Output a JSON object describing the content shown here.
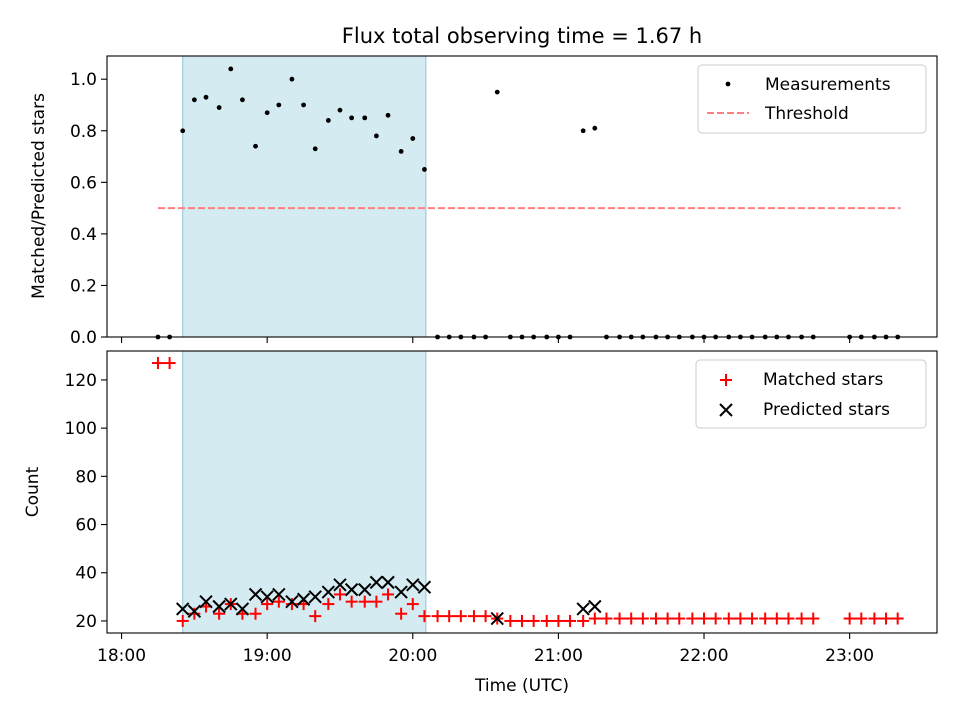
{
  "chart_data": {
    "type": "scatter",
    "suptitle": "Flux total observing time = 1.67 h",
    "time_unit": "hours (UTC)",
    "xlim": [
      17.9,
      23.6
    ],
    "xlabel": "Time (UTC)",
    "xticks": [
      {
        "value": 18,
        "label": "18:00"
      },
      {
        "value": 19,
        "label": "19:00"
      },
      {
        "value": 20,
        "label": "20:00"
      },
      {
        "value": 21,
        "label": "21:00"
      },
      {
        "value": 22,
        "label": "22:00"
      },
      {
        "value": 23,
        "label": "23:00"
      }
    ],
    "observing_window": [
      18.42,
      20.09
    ],
    "window_color": "#add8e6",
    "top": {
      "ylabel": "Matched/Predicted stars",
      "ylim": [
        0,
        1.09
      ],
      "yticks": [
        0.0,
        0.2,
        0.4,
        0.6,
        0.8,
        1.0
      ],
      "ytick_labels": [
        "0.0",
        "0.2",
        "0.4",
        "0.6",
        "0.8",
        "1.0"
      ],
      "legend": [
        "Measurements",
        "Threshold"
      ],
      "threshold": {
        "value": 0.5,
        "x_range": [
          18.25,
          23.35
        ],
        "color": "#ff8080"
      },
      "measurements": {
        "x": [
          18.25,
          18.33,
          18.42,
          18.5,
          18.58,
          18.67,
          18.75,
          18.83,
          18.92,
          19.0,
          19.08,
          19.17,
          19.25,
          19.33,
          19.42,
          19.5,
          19.58,
          19.67,
          19.75,
          19.83,
          19.92,
          20.0,
          20.08,
          20.17,
          20.25,
          20.33,
          20.42,
          20.5,
          20.58,
          20.67,
          20.75,
          20.83,
          20.92,
          21.0,
          21.08,
          21.17,
          21.25,
          21.33,
          21.42,
          21.5,
          21.58,
          21.67,
          21.75,
          21.83,
          21.92,
          22.0,
          22.08,
          22.17,
          22.25,
          22.33,
          22.42,
          22.5,
          22.58,
          22.67,
          22.75,
          23.0,
          23.08,
          23.17,
          23.25,
          23.33
        ],
        "y": [
          0,
          0,
          0.8,
          0.92,
          0.93,
          0.89,
          1.04,
          0.92,
          0.74,
          0.87,
          0.9,
          1.0,
          0.9,
          0.73,
          0.84,
          0.88,
          0.85,
          0.85,
          0.78,
          0.86,
          0.72,
          0.77,
          0.65,
          0,
          0,
          0,
          0,
          0,
          0.95,
          0,
          0,
          0,
          0,
          0,
          0,
          0.8,
          0.81,
          0,
          0,
          0,
          0,
          0,
          0,
          0,
          0,
          0,
          0,
          0,
          0,
          0,
          0,
          0,
          0,
          0,
          0,
          0,
          0,
          0,
          0,
          0
        ]
      }
    },
    "bottom": {
      "ylabel": "Count",
      "ylim": [
        15,
        132
      ],
      "yticks": [
        20,
        40,
        60,
        80,
        100,
        120
      ],
      "ytick_labels": [
        "20",
        "40",
        "60",
        "80",
        "100",
        "120"
      ],
      "legend": [
        "Matched stars",
        "Predicted stars"
      ],
      "matched_color": "#ff0000",
      "predicted_color": "#000000",
      "matched": {
        "x": [
          18.25,
          18.33,
          18.42,
          18.5,
          18.58,
          18.67,
          18.75,
          18.83,
          18.92,
          19.0,
          19.08,
          19.17,
          19.25,
          19.33,
          19.42,
          19.5,
          19.58,
          19.67,
          19.75,
          19.83,
          19.92,
          20.0,
          20.08,
          20.17,
          20.25,
          20.33,
          20.42,
          20.5,
          20.58,
          20.67,
          20.75,
          20.83,
          20.92,
          21.0,
          21.08,
          21.17,
          21.25,
          21.33,
          21.42,
          21.5,
          21.58,
          21.67,
          21.75,
          21.83,
          21.92,
          22.0,
          22.08,
          22.17,
          22.25,
          22.33,
          22.42,
          22.5,
          22.58,
          22.67,
          22.75,
          23.0,
          23.08,
          23.17,
          23.25,
          23.33
        ],
        "y": [
          127,
          127,
          20,
          23,
          26,
          23,
          27,
          23,
          23,
          27,
          28,
          27,
          27,
          22,
          27,
          31,
          28,
          28,
          28,
          31,
          23,
          27,
          22,
          22,
          22,
          22,
          22,
          22,
          21,
          20,
          20,
          20,
          20,
          20,
          20,
          20,
          21,
          21,
          21,
          21,
          21,
          21,
          21,
          21,
          21,
          21,
          21,
          21,
          21,
          21,
          21,
          21,
          21,
          21,
          21,
          21,
          21,
          21,
          21,
          21
        ]
      },
      "predicted": {
        "x": [
          18.42,
          18.5,
          18.58,
          18.67,
          18.75,
          18.83,
          18.92,
          19.0,
          19.08,
          19.17,
          19.25,
          19.33,
          19.42,
          19.5,
          19.58,
          19.67,
          19.75,
          19.83,
          19.92,
          20.0,
          20.08,
          20.58,
          21.17,
          21.25
        ],
        "y": [
          25,
          24,
          28,
          26,
          27,
          25,
          31,
          30,
          31,
          28,
          29,
          30,
          32,
          35,
          33,
          33,
          36,
          36,
          32,
          35,
          34,
          21,
          25,
          26
        ]
      }
    }
  }
}
